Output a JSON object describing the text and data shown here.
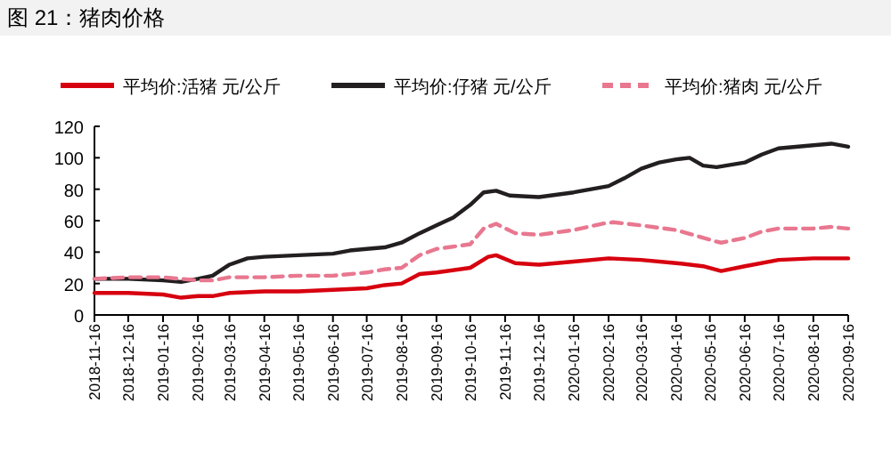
{
  "chart_data": {
    "type": "line",
    "title": "图 21：猪肉价格",
    "legend": "top",
    "grid": false,
    "xlim": [
      "2018-11-16",
      "2020-09-16"
    ],
    "xticks": [
      "2018-11-16",
      "2018-12-16",
      "2019-01-16",
      "2019-02-16",
      "2019-03-16",
      "2019-04-16",
      "2019-05-16",
      "2019-06-16",
      "2019-07-16",
      "2019-08-16",
      "2019-09-16",
      "2019-10-16",
      "2019-11-16",
      "2019-12-16",
      "2020-01-16",
      "2020-02-16",
      "2020-03-16",
      "2020-04-16",
      "2020-05-16",
      "2020-06-16",
      "2020-07-16",
      "2020-08-16",
      "2020-09-16"
    ],
    "ylim": [
      0,
      120
    ],
    "yticks": [
      0,
      20,
      40,
      60,
      80,
      100,
      120
    ],
    "series": [
      {
        "name": "平均价:活猪 元/公斤",
        "color": "#d7000f",
        "line_style": "solid",
        "x": [
          "2018-11-16",
          "2018-12-16",
          "2019-01-16",
          "2019-02-01",
          "2019-02-16",
          "2019-03-01",
          "2019-03-16",
          "2019-04-16",
          "2019-05-16",
          "2019-06-16",
          "2019-07-16",
          "2019-08-01",
          "2019-08-16",
          "2019-09-01",
          "2019-09-16",
          "2019-10-16",
          "2019-11-01",
          "2019-11-08",
          "2019-11-25",
          "2019-12-16",
          "2020-01-16",
          "2020-02-16",
          "2020-03-16",
          "2020-04-16",
          "2020-05-10",
          "2020-05-26",
          "2020-06-16",
          "2020-07-16",
          "2020-08-16",
          "2020-09-16"
        ],
        "values": [
          14,
          14,
          13,
          11,
          12,
          12,
          14,
          15,
          15,
          16,
          17,
          19,
          20,
          26,
          27,
          30,
          37,
          38,
          33,
          32,
          34,
          36,
          35,
          33,
          31,
          28,
          31,
          35,
          36,
          36
        ]
      },
      {
        "name": "平均价:仔猪 元/公斤",
        "color": "#231f20",
        "line_style": "solid",
        "x": [
          "2018-11-16",
          "2018-12-16",
          "2019-01-16",
          "2019-02-01",
          "2019-02-16",
          "2019-03-01",
          "2019-03-16",
          "2019-04-01",
          "2019-04-16",
          "2019-05-16",
          "2019-06-16",
          "2019-07-01",
          "2019-07-16",
          "2019-08-01",
          "2019-08-16",
          "2019-09-01",
          "2019-09-16",
          "2019-10-01",
          "2019-10-16",
          "2019-10-28",
          "2019-11-08",
          "2019-11-20",
          "2019-12-16",
          "2020-01-16",
          "2020-02-16",
          "2020-03-01",
          "2020-03-16",
          "2020-04-01",
          "2020-04-16",
          "2020-04-28",
          "2020-05-10",
          "2020-05-22",
          "2020-06-16",
          "2020-07-01",
          "2020-07-16",
          "2020-08-16",
          "2020-09-01",
          "2020-09-16"
        ],
        "values": [
          23,
          23,
          22,
          21,
          23,
          25,
          32,
          36,
          37,
          38,
          39,
          41,
          42,
          43,
          46,
          52,
          57,
          62,
          70,
          78,
          79,
          76,
          75,
          78,
          82,
          87,
          93,
          97,
          99,
          100,
          95,
          94,
          97,
          102,
          106,
          108,
          109,
          107
        ]
      },
      {
        "name": "平均价:猪肉 元/公斤",
        "color": "#e8778f",
        "line_style": "dashed",
        "x": [
          "2018-11-16",
          "2018-12-16",
          "2019-01-16",
          "2019-02-16",
          "2019-03-01",
          "2019-03-16",
          "2019-04-16",
          "2019-05-16",
          "2019-06-16",
          "2019-07-16",
          "2019-08-01",
          "2019-08-16",
          "2019-09-01",
          "2019-09-16",
          "2019-10-16",
          "2019-10-28",
          "2019-11-08",
          "2019-11-25",
          "2019-12-16",
          "2020-01-16",
          "2020-02-10",
          "2020-02-20",
          "2020-03-16",
          "2020-04-16",
          "2020-05-01",
          "2020-05-20",
          "2020-05-26",
          "2020-06-16",
          "2020-07-01",
          "2020-07-16",
          "2020-08-16",
          "2020-09-01",
          "2020-09-16"
        ],
        "values": [
          23,
          24,
          24,
          22,
          22,
          24,
          24,
          25,
          25,
          27,
          29,
          30,
          38,
          42,
          45,
          55,
          58,
          52,
          51,
          54,
          58,
          59,
          57,
          54,
          51,
          47,
          46,
          49,
          53,
          55,
          55,
          56,
          55
        ]
      }
    ]
  }
}
